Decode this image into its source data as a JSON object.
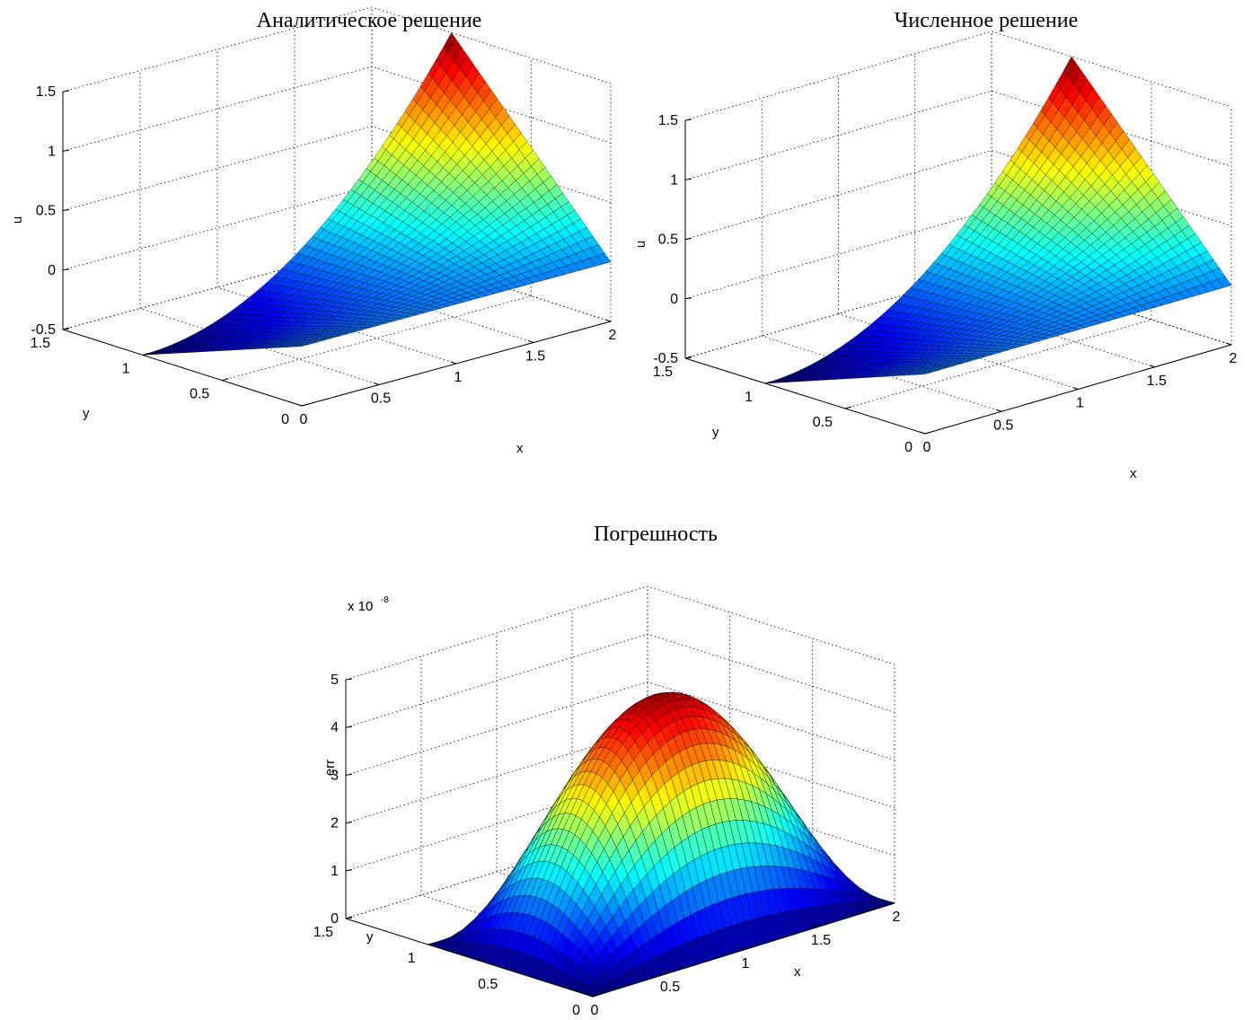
{
  "chart_data": [
    {
      "type": "surface",
      "title": "Аналитическое решение",
      "xlabel": "x",
      "ylabel": "y",
      "zlabel": "u",
      "xlim": [
        0,
        2
      ],
      "ylim": [
        0,
        1.5
      ],
      "zlim": [
        -0.5,
        1.5
      ],
      "xticks": [
        0,
        0.5,
        1,
        1.5,
        2
      ],
      "yticks": [
        0,
        0.5,
        1,
        1.5
      ],
      "zticks": [
        -0.5,
        0,
        0.5,
        1,
        1.5
      ],
      "xtick_labels": [
        "0",
        "0.5",
        "1",
        "1.5",
        "2"
      ],
      "ytick_labels": [
        "0",
        "0.5",
        "1",
        "1.5"
      ],
      "ztick_labels": [
        "-0.5",
        "0",
        "0.5",
        "1",
        "1.5"
      ],
      "z_exponent": "",
      "grid": true,
      "colormap": "jet",
      "surface": "z = 0.5·y·x² − 0.5·y",
      "corner_values": {
        "x0_y0": 0,
        "x2_y0": 0,
        "x0_y1": -0.5,
        "x2_y1": 1.5
      }
    },
    {
      "type": "surface",
      "title": "Численное решение",
      "xlabel": "x",
      "ylabel": "y",
      "zlabel": "u",
      "xlim": [
        0,
        2
      ],
      "ylim": [
        0,
        1.5
      ],
      "zlim": [
        -0.5,
        1.5
      ],
      "xticks": [
        0,
        0.5,
        1,
        1.5,
        2
      ],
      "yticks": [
        0,
        0.5,
        1,
        1.5
      ],
      "zticks": [
        -0.5,
        0,
        0.5,
        1,
        1.5
      ],
      "xtick_labels": [
        "0",
        "0.5",
        "1",
        "1.5",
        "2"
      ],
      "ytick_labels": [
        "0",
        "0.5",
        "1",
        "1.5"
      ],
      "ztick_labels": [
        "-0.5",
        "0",
        "0.5",
        "1",
        "1.5"
      ],
      "z_exponent": "",
      "grid": true,
      "colormap": "jet",
      "surface": "z = 0.5·y·x² − 0.5·y",
      "corner_values": {
        "x0_y0": 0,
        "x2_y0": 0,
        "x0_y1": -0.5,
        "x2_y1": 1.5
      }
    },
    {
      "type": "surface",
      "title": "Погрешность",
      "xlabel": "x",
      "ylabel": "y",
      "zlabel": "err",
      "xlim": [
        0,
        2
      ],
      "ylim": [
        0,
        1.5
      ],
      "zlim": [
        0,
        5
      ],
      "xticks": [
        0,
        0.5,
        1,
        1.5,
        2
      ],
      "yticks": [
        0,
        0.5,
        1,
        1.5
      ],
      "zticks": [
        0,
        1,
        2,
        3,
        4,
        5
      ],
      "xtick_labels": [
        "0",
        "0.5",
        "1",
        "1.5",
        "2"
      ],
      "ytick_labels": [
        "0",
        "0.5",
        "1",
        "1.5"
      ],
      "ztick_labels": [
        "0",
        "1",
        "2",
        "3",
        "4",
        "5"
      ],
      "z_exponent": "x 10",
      "z_exponent_power": "-8",
      "grid": true,
      "colormap": "jet",
      "surface": "z = 4.8·sin(πx/2)·sin(πy)",
      "peak_value": 4.8
    }
  ]
}
